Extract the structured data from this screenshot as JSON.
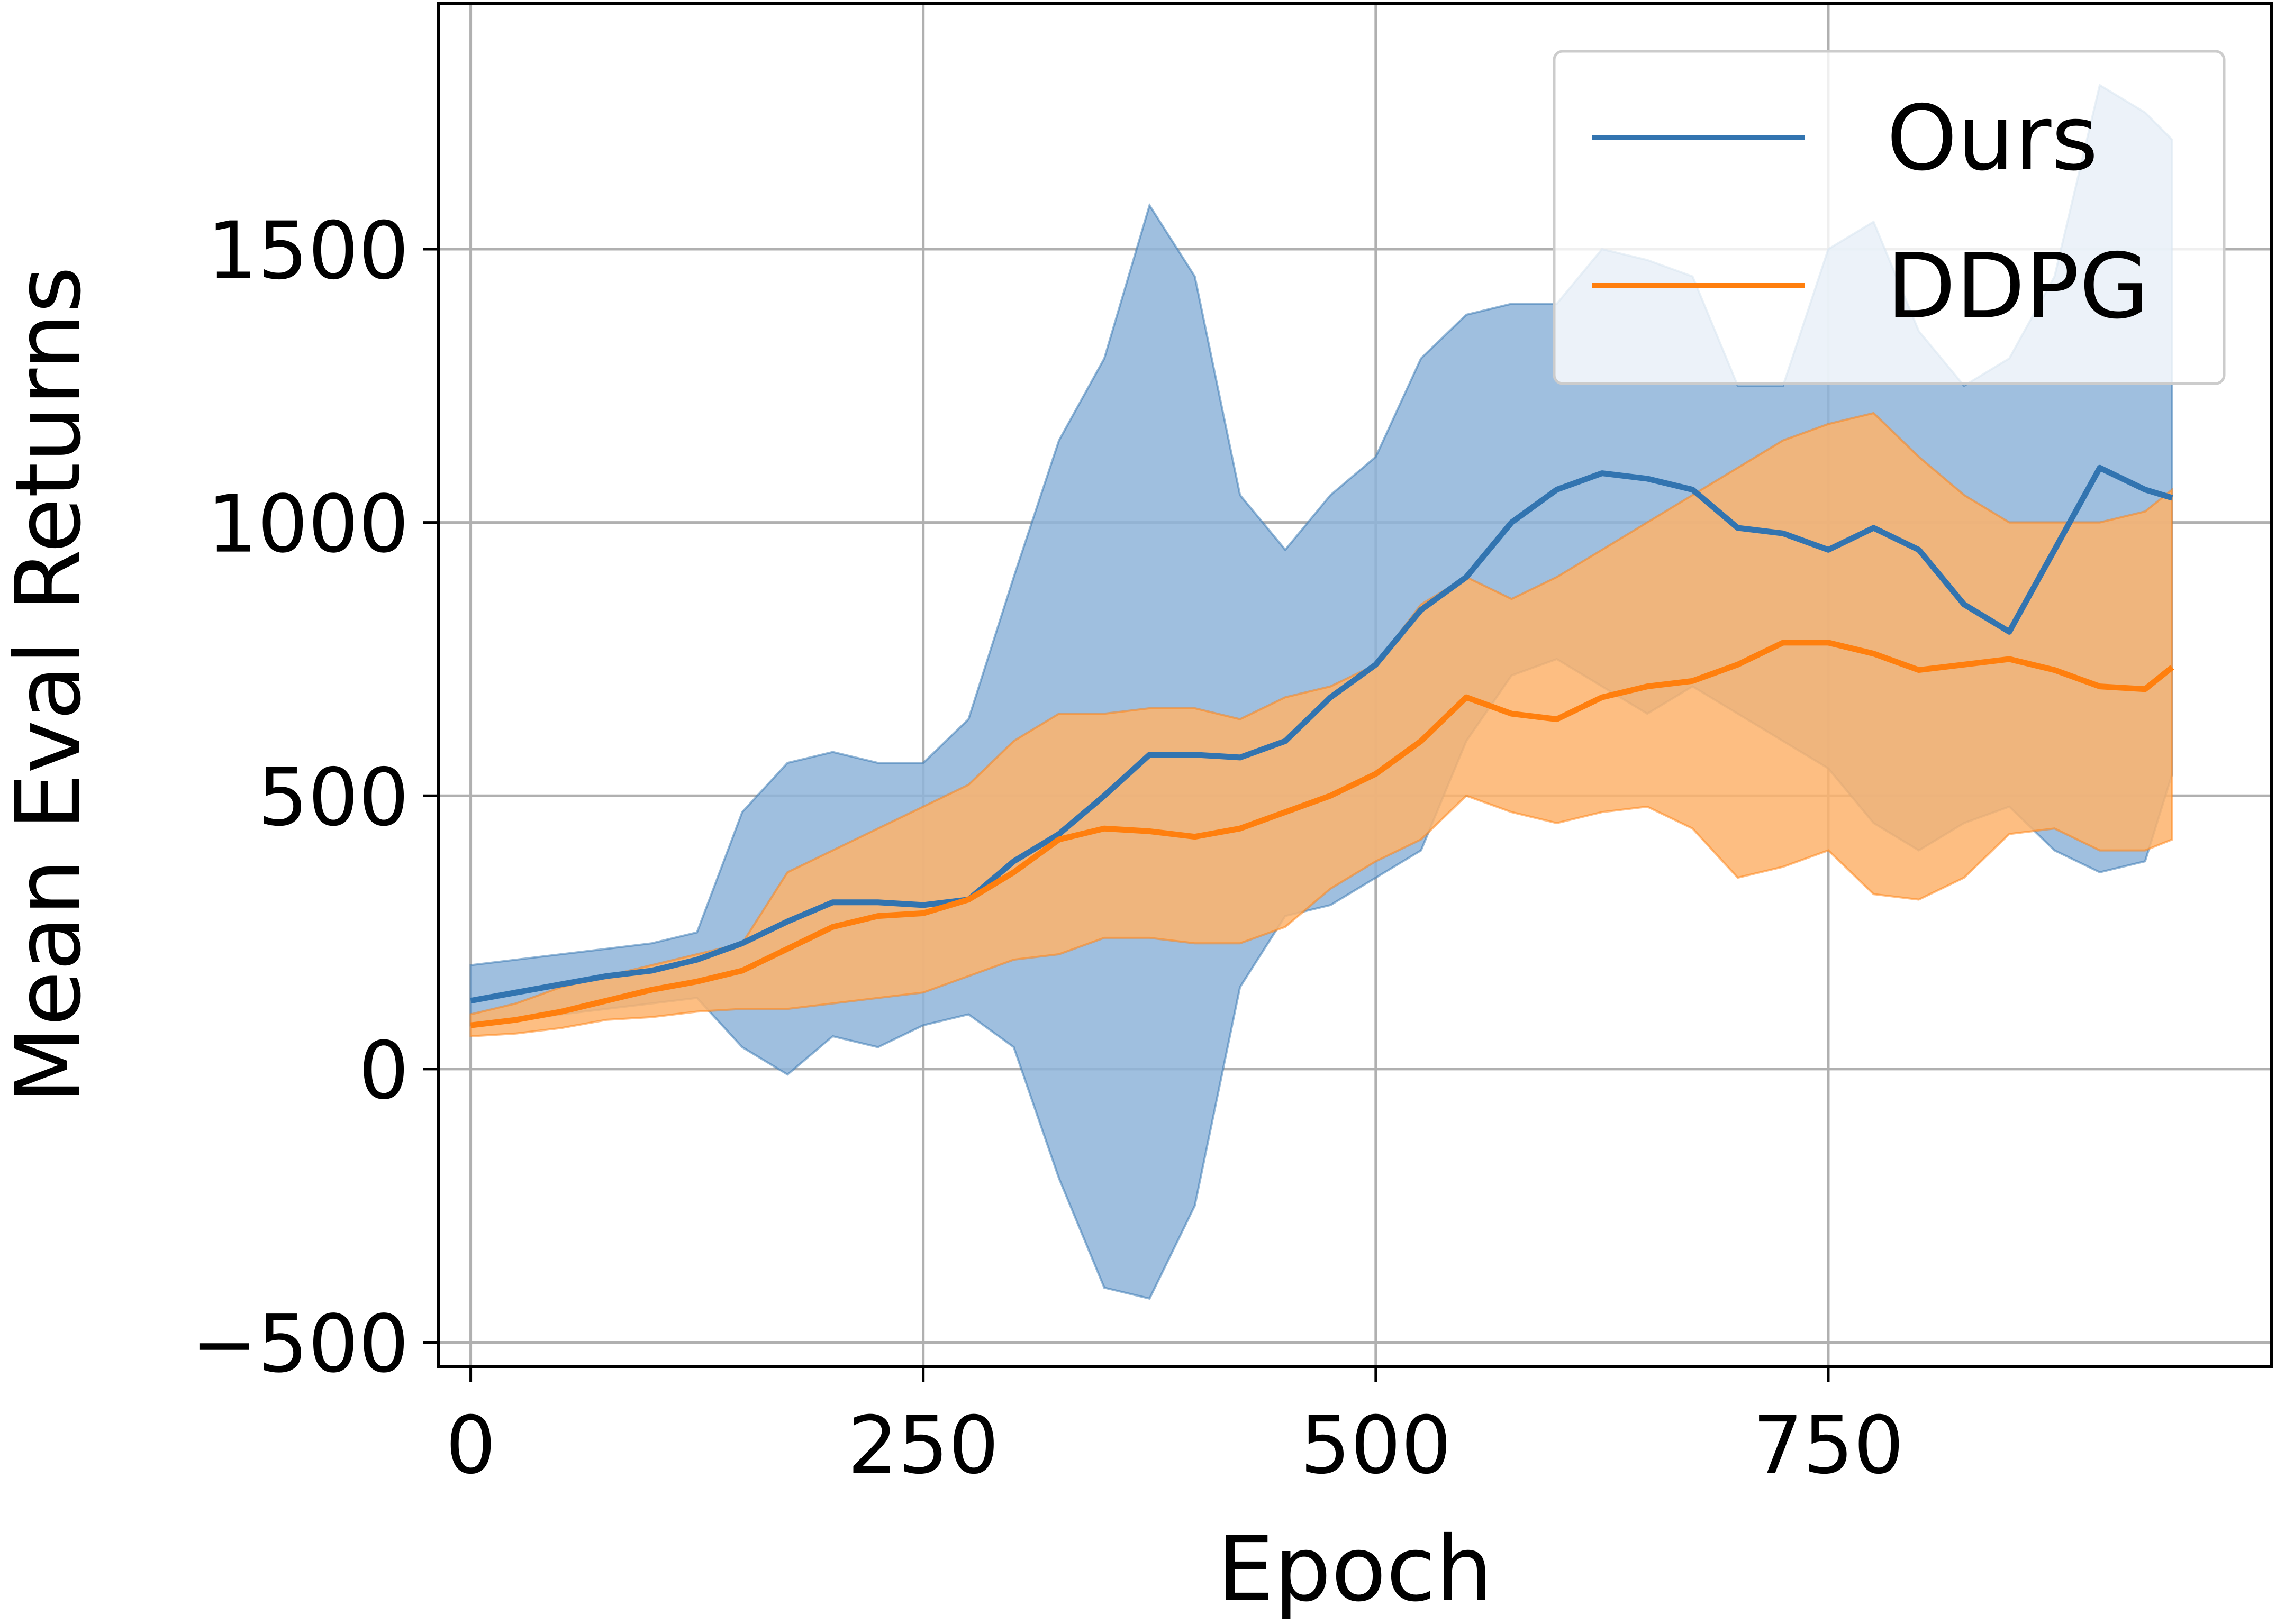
{
  "chart_data": {
    "type": "line",
    "title": "",
    "xlabel": "Epoch",
    "ylabel": "Mean Eval Returns",
    "xlim": [
      -18,
      995
    ],
    "ylim": [
      -545,
      1950
    ],
    "x_ticks": [
      0,
      250,
      500,
      750
    ],
    "y_ticks": [
      -500,
      0,
      500,
      1000,
      1500
    ],
    "x_tick_labels": [
      "0",
      "250",
      "500",
      "750"
    ],
    "y_tick_labels": [
      "−500",
      "0",
      "500",
      "1000",
      "1500"
    ],
    "grid": true,
    "legend_position": "top-right",
    "x": [
      0,
      25,
      50,
      75,
      100,
      125,
      150,
      175,
      200,
      225,
      250,
      275,
      300,
      325,
      350,
      375,
      400,
      425,
      450,
      475,
      500,
      525,
      550,
      575,
      600,
      625,
      650,
      675,
      700,
      725,
      750,
      775,
      800,
      825,
      850,
      875,
      900,
      925,
      940
    ],
    "series": [
      {
        "name": "Ours",
        "color": "#3274b0",
        "band_color": "#8eb4d9",
        "values": [
          125,
          140,
          155,
          170,
          180,
          200,
          230,
          270,
          305,
          305,
          300,
          310,
          380,
          430,
          500,
          575,
          575,
          570,
          600,
          680,
          740,
          840,
          900,
          1000,
          1060,
          1090,
          1080,
          1060,
          990,
          980,
          950,
          990,
          950,
          850,
          800,
          950,
          1100,
          1060,
          1045
        ],
        "upper": [
          190,
          200,
          210,
          220,
          230,
          250,
          470,
          560,
          580,
          560,
          560,
          640,
          900,
          1150,
          1300,
          1580,
          1450,
          1050,
          950,
          1050,
          1120,
          1300,
          1380,
          1400,
          1400,
          1500,
          1480,
          1450,
          1250,
          1250,
          1500,
          1550,
          1350,
          1250,
          1300,
          1450,
          1800,
          1750,
          1700
        ],
        "lower": [
          80,
          90,
          100,
          110,
          120,
          130,
          40,
          -10,
          60,
          40,
          80,
          100,
          40,
          -200,
          -400,
          -420,
          -250,
          150,
          280,
          300,
          350,
          400,
          600,
          720,
          750,
          700,
          650,
          700,
          650,
          600,
          550,
          450,
          400,
          450,
          480,
          400,
          360,
          380,
          540
        ]
      },
      {
        "name": "DDPG",
        "color": "#ff7f0e",
        "band_color": "#fdb36c",
        "values": [
          80,
          90,
          105,
          125,
          145,
          160,
          180,
          220,
          260,
          280,
          285,
          310,
          360,
          420,
          440,
          435,
          425,
          440,
          470,
          500,
          540,
          600,
          680,
          650,
          640,
          680,
          700,
          710,
          740,
          780,
          780,
          760,
          730,
          740,
          750,
          730,
          700,
          695,
          735
        ],
        "upper": [
          100,
          120,
          150,
          170,
          190,
          210,
          230,
          360,
          400,
          440,
          480,
          520,
          600,
          650,
          650,
          660,
          660,
          640,
          680,
          700,
          740,
          850,
          900,
          860,
          900,
          950,
          1000,
          1050,
          1100,
          1150,
          1180,
          1200,
          1120,
          1050,
          1000,
          1000,
          1000,
          1020,
          1060
        ],
        "lower": [
          60,
          65,
          75,
          90,
          95,
          105,
          110,
          110,
          120,
          130,
          140,
          170,
          200,
          210,
          240,
          240,
          230,
          230,
          260,
          330,
          380,
          420,
          500,
          470,
          450,
          470,
          480,
          440,
          350,
          370,
          400,
          320,
          310,
          350,
          430,
          440,
          400,
          400,
          420
        ]
      }
    ]
  }
}
